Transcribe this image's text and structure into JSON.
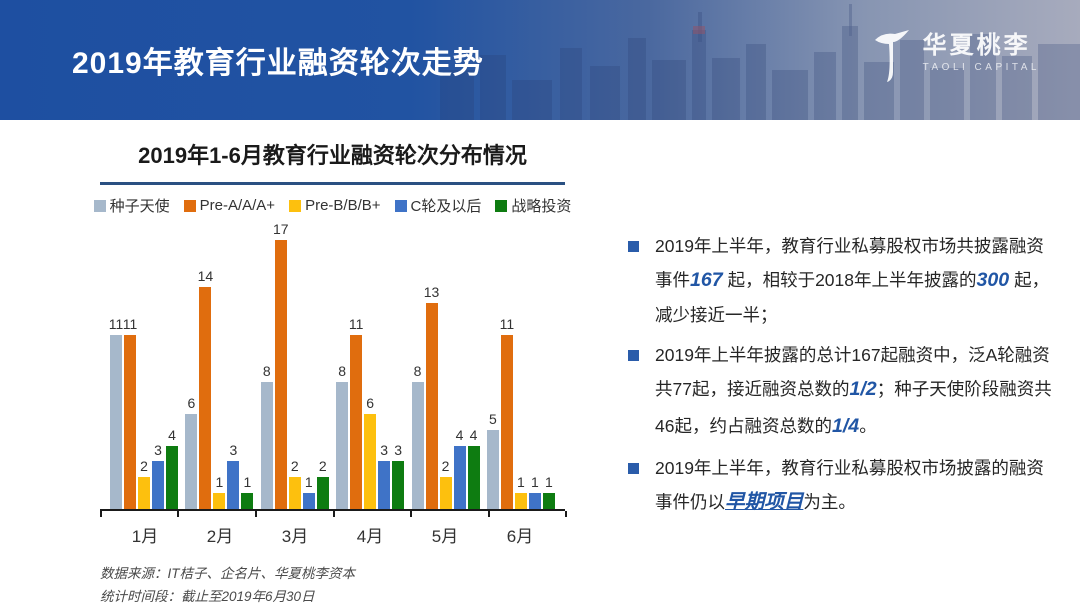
{
  "header": {
    "title": "2019年教育行业融资轮次走势",
    "logo": {
      "name_cn": "华夏桃李",
      "name_en": "TAOLI CAPITAL"
    }
  },
  "chart": {
    "title": "2019年1-6月教育行业融资轮次分布情况",
    "source_line1": "数据来源：IT桔子、企名片、华夏桃李资本",
    "source_line2": "统计时间段：截止至2019年6月30日"
  },
  "chart_data": {
    "type": "bar",
    "title": "2019年1-6月教育行业融资轮次分布情况",
    "categories": [
      "1月",
      "2月",
      "3月",
      "4月",
      "5月",
      "6月"
    ],
    "series": [
      {
        "name": "种子天使",
        "color": "#a6b8cb",
        "values": [
          11,
          6,
          8,
          8,
          8,
          5
        ]
      },
      {
        "name": "Pre-A/A/A+",
        "color": "#e06d0e",
        "values": [
          11,
          14,
          17,
          11,
          13,
          11
        ]
      },
      {
        "name": "Pre-B/B/B+",
        "color": "#fdc00e",
        "values": [
          2,
          1,
          2,
          6,
          2,
          1
        ]
      },
      {
        "name": "C轮及以后",
        "color": "#3f73c7",
        "values": [
          3,
          3,
          1,
          3,
          4,
          1
        ]
      },
      {
        "name": "战略投资",
        "color": "#0e7c11",
        "values": [
          4,
          1,
          2,
          3,
          4,
          1
        ]
      }
    ],
    "ylim": [
      0,
      18
    ],
    "data_labels": true,
    "legend_position": "top",
    "grid": false,
    "xlabel": "",
    "ylabel": ""
  },
  "bullets": [
    {
      "segments": [
        {
          "text": "2019年上半年，教育行业私募股权市场共披露融资事件"
        },
        {
          "text": "167",
          "highlight": true
        },
        {
          "text": " 起，相较于2018年上半年披露的"
        },
        {
          "text": "300",
          "highlight": true
        },
        {
          "text": " 起，减少接近一半；"
        }
      ]
    },
    {
      "segments": [
        {
          "text": "2019年上半年披露的总计167起融资中，泛A轮融资共77起，接近融资总数的"
        },
        {
          "text": "1/2",
          "highlight": true
        },
        {
          "text": "；种子天使阶段融资共46起，约占融资总数的"
        },
        {
          "text": "1/4",
          "highlight": true
        },
        {
          "text": "。"
        }
      ]
    },
    {
      "segments": [
        {
          "text": "2019年上半年，教育行业私募股权市场披露的融资事件仍以"
        },
        {
          "text": "早期项目",
          "highlight": true,
          "underline": true
        },
        {
          "text": "为主。"
        }
      ]
    }
  ],
  "colors": {
    "header_blue": "#1e4fa1",
    "divider_blue": "#2a5082",
    "bullet_marker": "#2a5caa",
    "highlight_text": "#2156a5",
    "axis": "#1a1a1a"
  }
}
